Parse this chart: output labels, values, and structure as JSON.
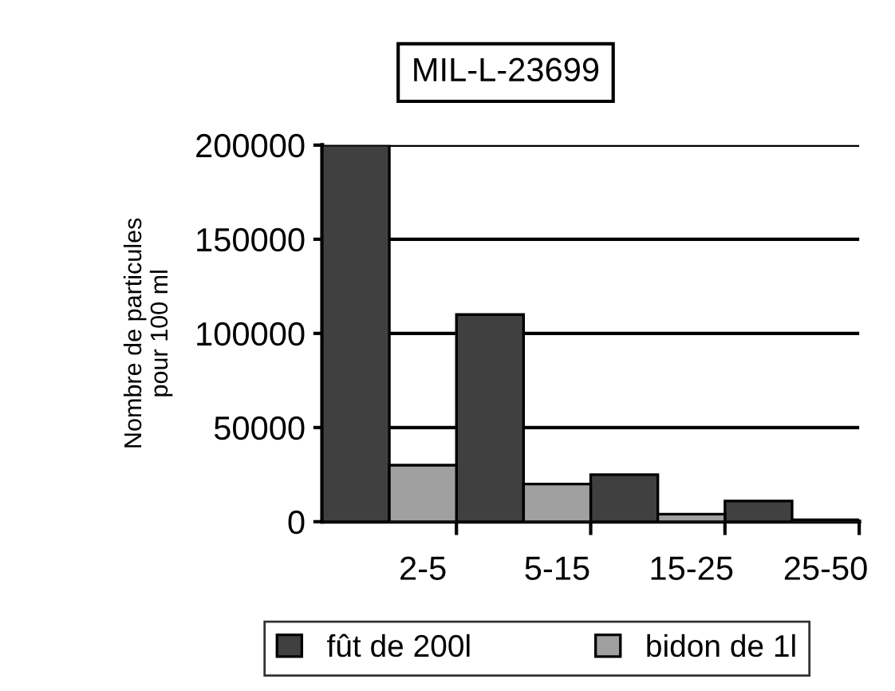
{
  "chart_data": {
    "type": "bar",
    "title": "MIL-L-23699",
    "ylabel": "Nombre de particules\npour 100 ml",
    "categories": [
      "2-5",
      "5-15",
      "15-25",
      "25-50"
    ],
    "series": [
      {
        "name": "fût de 200l",
        "color": "#404040",
        "values": [
          200000,
          110000,
          25000,
          11000
        ]
      },
      {
        "name": "bidon de 1l",
        "color": "#a0a0a0",
        "values": [
          30000,
          20000,
          4000,
          1000
        ]
      }
    ],
    "ylim": [
      0,
      200000
    ],
    "yticks": [
      0,
      50000,
      100000,
      150000,
      200000
    ],
    "grid": "y",
    "legend": "bottom"
  }
}
